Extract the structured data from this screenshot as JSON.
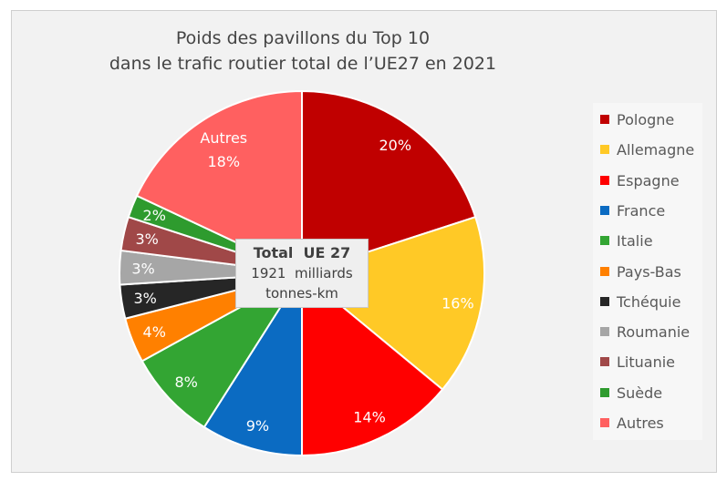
{
  "chart_data": {
    "type": "pie",
    "title": [
      "Poids des pavillons du Top 10",
      "dans le trafic routier total de l’UE27 en 2021"
    ],
    "categories": [
      "Pologne",
      "Allemagne",
      "Espagne",
      "France",
      "Italie",
      "Pays-Bas",
      "Tchéquie",
      "Roumanie",
      "Lituanie",
      "Suède",
      "Autres"
    ],
    "values": [
      20,
      16,
      14,
      9,
      8,
      4,
      3,
      3,
      3,
      2,
      18
    ],
    "data_labels": [
      "20%",
      "16%",
      "14%",
      "9%",
      "8%",
      "4%",
      "3%",
      "3%",
      "3%",
      "2%",
      "18%"
    ],
    "colors": [
      "#c00000",
      "#ffc926",
      "#ff0000",
      "#0b6bc2",
      "#33a533",
      "#ff8000",
      "#262626",
      "#a6a6a6",
      "#a04848",
      "#2e9b2e",
      "#ff6060"
    ],
    "legend_position": "right",
    "start_angle": "top, clockwise",
    "center_annotation": {
      "line1": "Total  UE 27",
      "line2": "1921  milliards",
      "line3": "tonnes-km"
    }
  }
}
